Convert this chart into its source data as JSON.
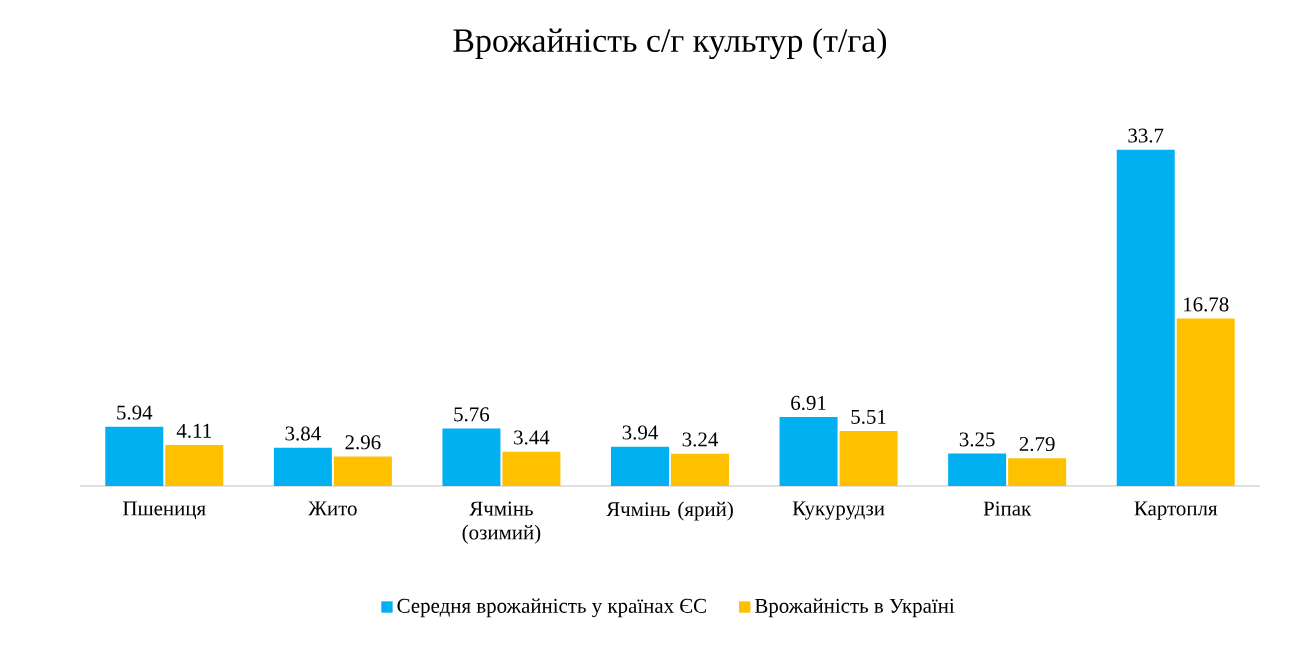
{
  "chart_data": {
    "type": "bar",
    "title": "Врожайність с/г культур (т/га)",
    "categories": [
      "Пшениця",
      "Жито",
      "Ячмінь (озимий)",
      "Ячмінь (ярий)",
      "Кукурудзи",
      "Ріпак",
      "Картопля"
    ],
    "series": [
      {
        "name": "Середня врожайність у країнах ЄС",
        "color": "#00b0f0",
        "values": [
          5.94,
          3.84,
          5.76,
          3.94,
          6.91,
          3.25,
          33.7
        ]
      },
      {
        "name": "Врожайність в Україні",
        "color": "#ffc000",
        "values": [
          4.11,
          2.96,
          3.44,
          3.24,
          5.51,
          2.79,
          16.78
        ]
      }
    ],
    "data_labels": true,
    "legend": "bottom"
  }
}
